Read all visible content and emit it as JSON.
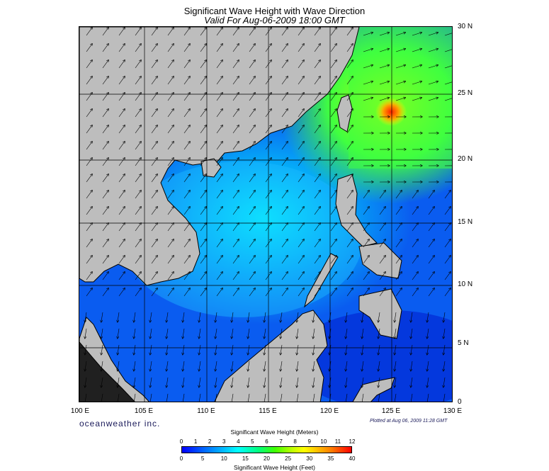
{
  "title": "Significant Wave Height with Wave Direction",
  "subtitle": "Valid For Aug-06-2009 18:00 GMT",
  "lat_labels": [
    "30 N",
    "25 N",
    "20 N",
    "15 N",
    "10 N",
    "5 N",
    "0"
  ],
  "lon_labels": [
    "100 E",
    "105 E",
    "110 E",
    "115 E",
    "120 E",
    "125 E",
    "130 E"
  ],
  "brand": "oceanweather inc.",
  "plotted": "Plotted at Aug 06, 2009 11:28 GMT",
  "colorbar": {
    "meters_title": "Significant Wave Height (Meters)",
    "meters_ticks": [
      "0",
      "1",
      "2",
      "3",
      "4",
      "5",
      "6",
      "7",
      "8",
      "9",
      "10",
      "11",
      "12"
    ],
    "feet_title": "Significant Wave Height (Feet)",
    "feet_ticks": [
      "0",
      "5",
      "10",
      "15",
      "20",
      "25",
      "30",
      "35",
      "40"
    ]
  },
  "colors": {
    "land": "#bdbdbd",
    "sea_low": "#0050ff",
    "sea_mid": "#00e0ff",
    "sea_high": "#40ff00",
    "peak": "#ff3000"
  }
}
